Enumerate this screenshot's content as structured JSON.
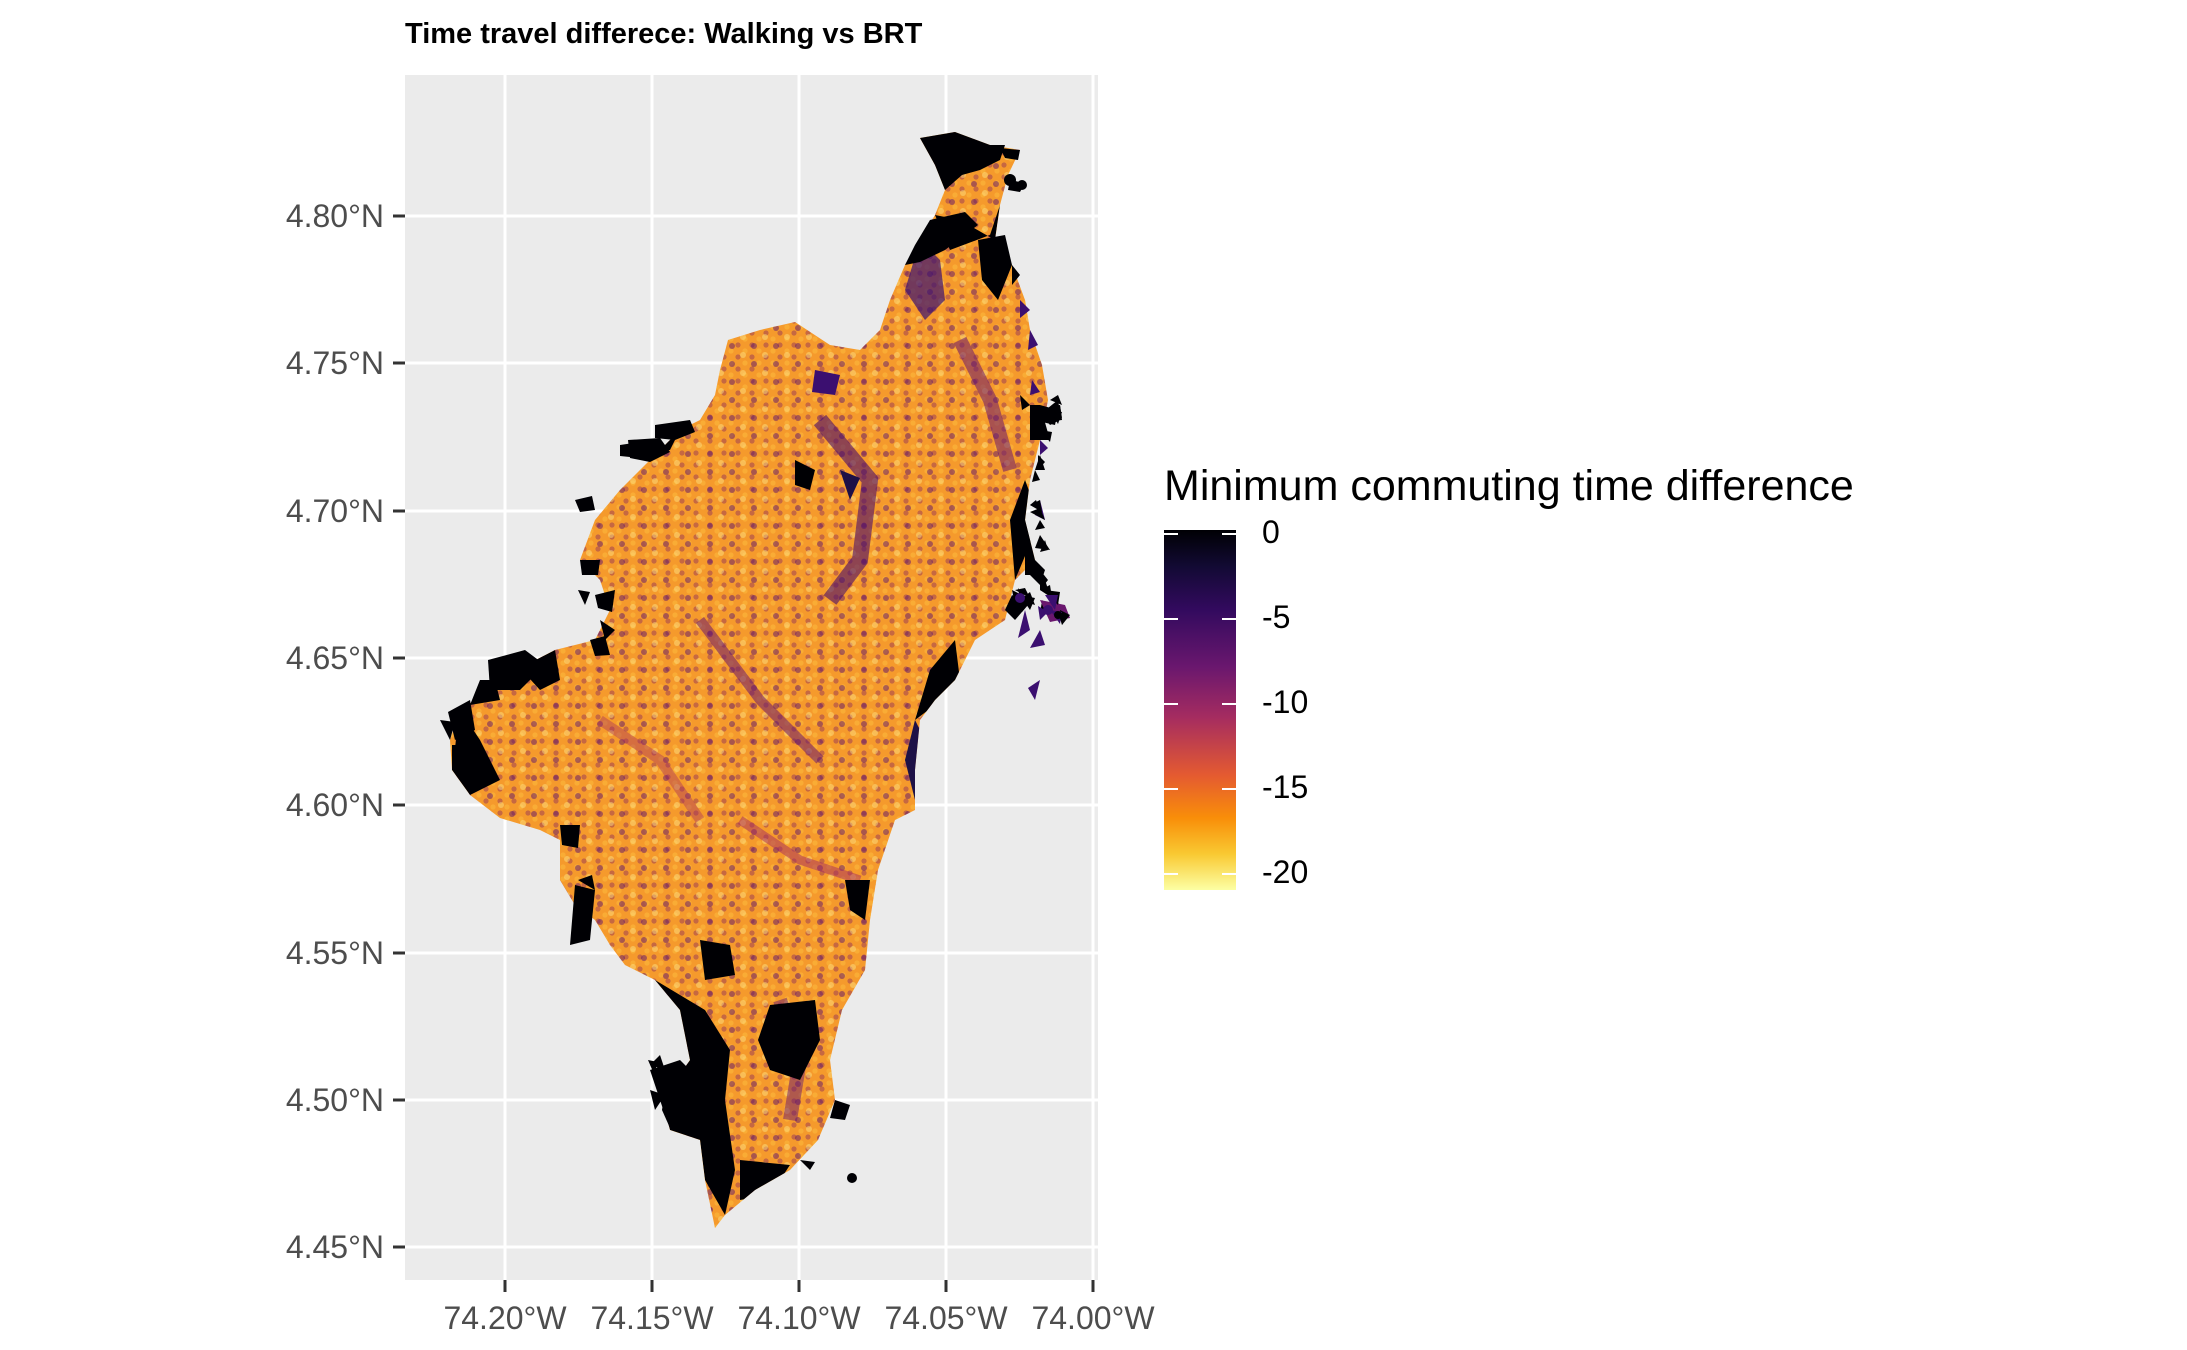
{
  "title": "Time travel differece: Walking vs BRT",
  "map": {
    "lat_ticks": [
      "4.80°N",
      "4.75°N",
      "4.70°N",
      "4.65°N",
      "4.60°N",
      "4.55°N",
      "4.50°N",
      "4.45°N"
    ],
    "lon_ticks": [
      "74.20°W",
      "74.15°W",
      "74.10°W",
      "74.05°W",
      "74.00°W"
    ],
    "panel_background": "#ebebeb",
    "grid_color": "#ffffff",
    "palette": "inferno"
  },
  "legend": {
    "title": "Minimum commuting time difference",
    "labels": [
      "0",
      "-5",
      "-10",
      "-15",
      "-20"
    ],
    "range": [
      -21,
      0
    ]
  }
}
